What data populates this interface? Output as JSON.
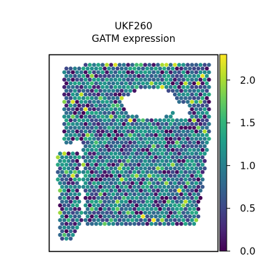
{
  "chart_data": {
    "type": "scatter",
    "title_lines": [
      "UKF260",
      "GATM expression"
    ],
    "xlabel": "",
    "ylabel": "",
    "grid": false,
    "colorbar": {
      "colormap": "viridis",
      "range": [
        0.0,
        2.3
      ],
      "ticks": [
        0.0,
        0.5,
        1.0,
        1.5,
        2.0
      ],
      "tick_labels": [
        "0.0",
        "0.5",
        "1.0",
        "1.5",
        "2.0"
      ]
    },
    "colors": {
      "viridis_stops": [
        "#440154",
        "#482878",
        "#3e4989",
        "#31688e",
        "#26828e",
        "#1f9e89",
        "#35b779",
        "#6ece58",
        "#b5de2b",
        "#fde725"
      ],
      "frame": "#000000"
    },
    "value_distribution": {
      "min": 0.0,
      "max": 2.3,
      "typical": [
        0.5,
        1.3
      ]
    }
  }
}
